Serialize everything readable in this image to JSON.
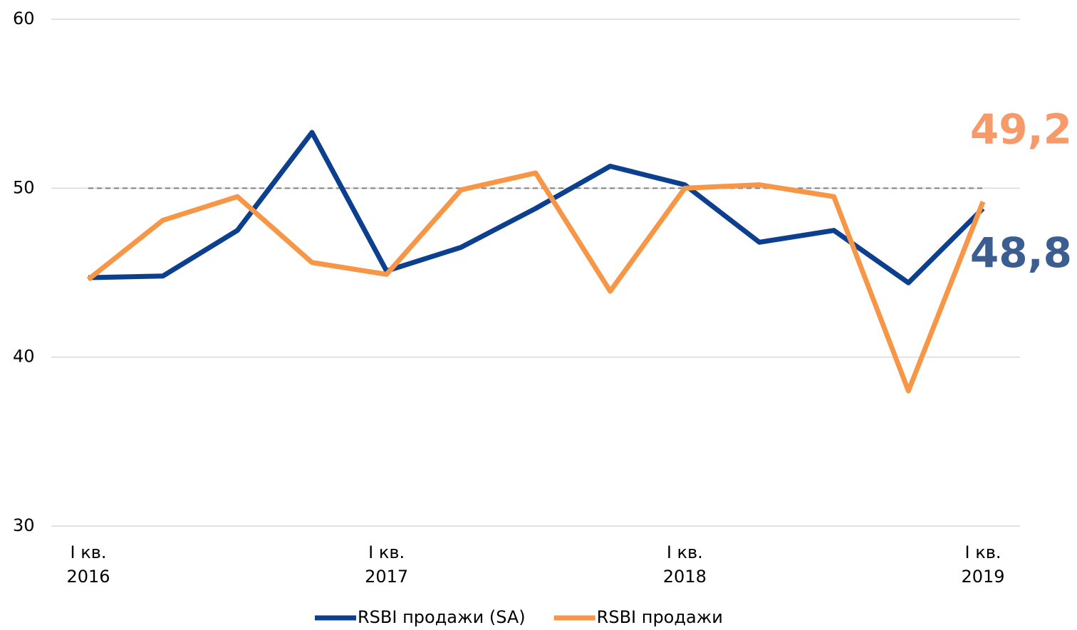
{
  "chart_data": {
    "type": "line",
    "categories": [
      "I кв.\n2016",
      null,
      null,
      null,
      "I кв.\n2017",
      null,
      null,
      null,
      "I кв.\n2018",
      null,
      null,
      null,
      "I кв.\n2019"
    ],
    "series": [
      {
        "name": "RSBI продажи (SA)",
        "color": "#0d3f8f",
        "values": [
          44.7,
          44.8,
          47.5,
          53.3,
          45.1,
          46.5,
          48.8,
          51.3,
          50.2,
          46.8,
          47.5,
          44.4,
          48.8
        ],
        "value_labels": [
          null,
          null,
          null,
          null,
          null,
          null,
          null,
          null,
          null,
          null,
          null,
          null,
          "48,8"
        ],
        "label_color": "#3b5d8f"
      },
      {
        "name": "RSBI продажи",
        "color": "#f79646",
        "values": [
          44.6,
          48.1,
          49.5,
          45.6,
          44.9,
          49.9,
          50.9,
          43.9,
          50.0,
          50.2,
          49.5,
          38.0,
          49.2
        ],
        "value_labels": [
          null,
          null,
          null,
          null,
          null,
          null,
          null,
          null,
          null,
          null,
          null,
          null,
          "49,2"
        ],
        "label_color": "#f79a6a"
      }
    ],
    "ylim": [
      30,
      60
    ],
    "yticks": [
      30,
      40,
      50,
      60
    ],
    "grid": true,
    "reference_line": 50,
    "legend": "bottom"
  }
}
